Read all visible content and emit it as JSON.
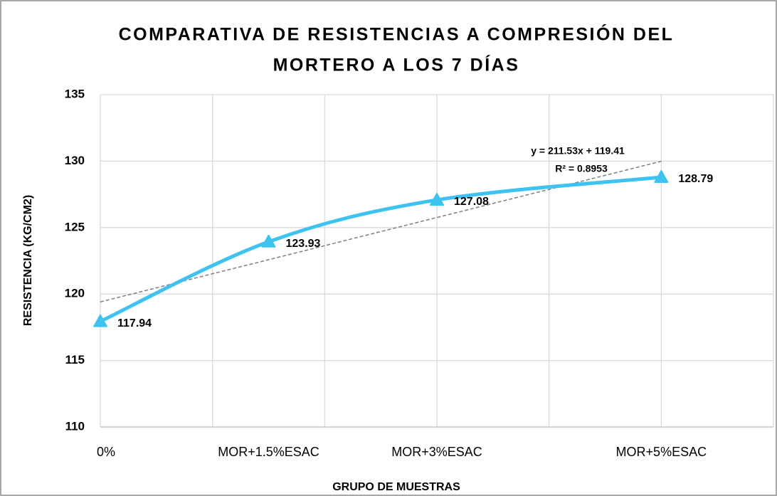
{
  "chart_data": {
    "type": "line",
    "title": [
      "COMPARATIVA DE RESISTENCIAS A COMPRESIÓN DEL",
      "MORTERO A LOS 7 DÍAS"
    ],
    "x_axis_label": "GRUPO DE MUESTRAS",
    "y_axis_label": "RESISTENCIA (KG/CM2)",
    "x": [
      0,
      0.015,
      0.03,
      0.05
    ],
    "x_labels": [
      "0%",
      "MOR+1.5%ESAC",
      "MOR+3%ESAC",
      "MOR+5%ESAC"
    ],
    "values": [
      117.94,
      123.93,
      127.08,
      128.79
    ],
    "color": "#3ec3f0",
    "xlim": [
      0,
      0.06
    ],
    "xticks": [
      0,
      0.01,
      0.02,
      0.03,
      0.04,
      0.05,
      0.06
    ],
    "ylim": [
      110,
      135
    ],
    "yticks": [
      110,
      115,
      120,
      125,
      130,
      135
    ],
    "grid": true,
    "trendline": {
      "slope": 211.53,
      "intercept": 119.41,
      "label": "y = 211.53x + 119.41",
      "r2_label": "R² = 0.8953"
    }
  }
}
